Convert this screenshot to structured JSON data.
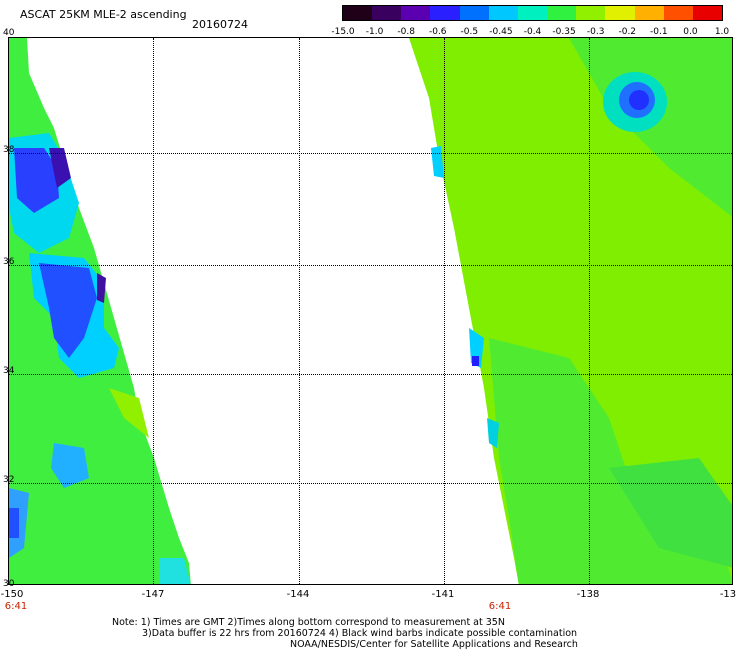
{
  "header": {
    "title": "ASCAT 25KM MLE-2 ascending",
    "date": "20160724"
  },
  "colorbar": {
    "tick_labels": [
      "-15.0",
      "-1.0",
      "-0.8",
      "-0.6",
      "-0.5",
      "-0.45",
      "-0.4",
      "-0.35",
      "-0.3",
      "-0.2",
      "-0.1",
      "0.0",
      "1.0"
    ],
    "colors": [
      "#200018",
      "#3a0060",
      "#5a00b0",
      "#2a20ff",
      "#0070ff",
      "#00c8ff",
      "#00f0c0",
      "#30f040",
      "#90f000",
      "#e0f000",
      "#ffb000",
      "#ff5000",
      "#e80000"
    ]
  },
  "map": {
    "lat_labels": [
      "40",
      "38",
      "36",
      "34",
      "32",
      "30"
    ],
    "lon_labels": [
      "-150",
      "-147",
      "-144",
      "-141",
      "-138",
      "-13"
    ],
    "time_labels": [
      "6:41",
      "6:41"
    ]
  },
  "footer": {
    "line1": "Note: 1) Times are GMT 2)Times along bottom correspond to measurement at 35N",
    "line2": "3)Data buffer is 22 hrs from 20160724 4) Black wind barbs indicate possible contamination",
    "line3": "NOAA/NESDIS/Center for Satellite Applications and Research"
  }
}
